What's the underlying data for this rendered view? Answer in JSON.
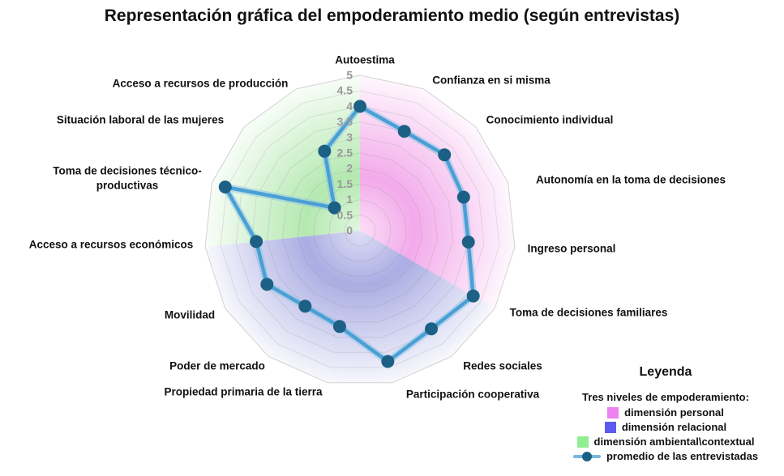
{
  "chart_data": {
    "type": "radar",
    "title": "Representación gráfica del empoderamiento medio (según entrevistas)",
    "rmin": 0,
    "rmax": 5,
    "tick_step": 0.5,
    "ticks": [
      "0",
      "0.5",
      "1",
      "1.5",
      "2",
      "2.5",
      "3",
      "3.5",
      "4",
      "4.5",
      "5"
    ],
    "axes": [
      "Autoestima",
      "Confianza en si misma",
      "Conocimiento individual",
      "Autonomía en la toma de decisiones",
      "Ingreso personal",
      "Toma de decisiones familiares",
      "Redes sociales",
      "Participación cooperativa",
      "Propiedad primaria de la tierra",
      "Poder de mercado",
      "Movilidad",
      "Acceso a recursos económicos",
      "Toma de decisiones técnico-\nproductivas",
      "Situación laboral de las mujeres",
      "Acceso a recursos de producción"
    ],
    "series": [
      {
        "name": "promedio de las entrevistadas",
        "values": [
          4.0,
          3.5,
          3.65,
          3.5,
          3.5,
          4.2,
          3.9,
          4.3,
          3.15,
          3.0,
          3.45,
          3.35,
          4.55,
          1.1,
          2.8
        ]
      }
    ],
    "sectors": [
      {
        "name": "dimensión personal",
        "color": "#e85cd8",
        "from": 0,
        "to": 5
      },
      {
        "name": "dimensión relacional",
        "color": "#5d61c9",
        "from": 5,
        "to": 11
      },
      {
        "name": "dimensión ambiental\\contextual",
        "color": "#6fd468",
        "from": 11,
        "to": 15
      }
    ],
    "line_color": "#4aa0d5",
    "line_halo_color": "#8ec4e6",
    "marker_color": "#1d6086",
    "tick_color": "#999999",
    "grid_color": "#787882",
    "axis_label_color": "#111111"
  },
  "legend": {
    "title": "Leyenda",
    "subtitle": "Tres niveles de empoderamiento:",
    "items": [
      {
        "swatch": "square",
        "color": "#ee82ee",
        "label": "dimensión personal"
      },
      {
        "swatch": "square",
        "color": "#5b5bef",
        "label": "dimensión relacional"
      },
      {
        "swatch": "square",
        "color": "#90ee90",
        "label": "dimensión ambiental\\contextual"
      },
      {
        "swatch": "line",
        "color": "#74b6e0",
        "marker_color": "#1d6086",
        "label": "promedio de las entrevistadas"
      }
    ]
  }
}
